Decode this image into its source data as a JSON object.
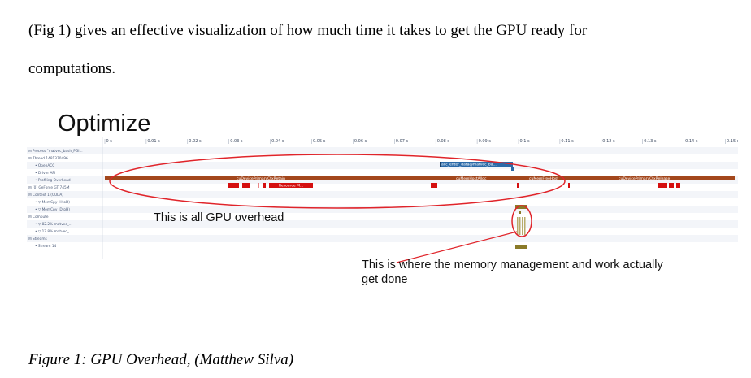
{
  "paragraph": {
    "line1": "(Fig 1) gives an effective visualization of how much time it takes to get the GPU ready for",
    "line2": "computations."
  },
  "figure": {
    "title": "Optimize",
    "time_ticks": [
      "0 s",
      "0.01 s",
      "0.02 s",
      "0.03 s",
      "0.04 s",
      "0.05 s",
      "0.06 s",
      "0.07 s",
      "0.08 s",
      "0.09 s",
      "0.1 s",
      "0.11 s",
      "0.12 s",
      "0.13 s",
      "0.14 s",
      "0.15 s"
    ],
    "rows": [
      "⊟ Process \"matvec_bash_PGI...",
      "⊟ Thread 1481370496",
      "• OpenACC",
      "• Driver API",
      "• Profiling Overhead",
      "⊟ [0] GeForce GT 745M",
      "⊟ Context 1 (CUDA)",
      "• ▽ MemCpy (HtoD)",
      "• ▽ MemCpy (DtoH)",
      "⊟ Compute",
      "• ▽ 82.2% matvec_...",
      "• ▽ 17.8% matvec_...",
      "⊟ Streams",
      "• Stream 14"
    ],
    "bar_labels": {
      "openacc": "acc_enter_data@matvec_ba...",
      "retain": "cuDevicePrimaryCtxRetain",
      "alloc": "cuMemHostAlloc",
      "free": "cuMemFreeHost",
      "release": "cuDevicePrimaryCtxRelease",
      "resource": "Resource M..."
    },
    "annotation_overhead": "This is all GPU overhead",
    "annotation_work": "This is where the memory management and work actually get done",
    "colors": {
      "driver_bar": "#a3471c",
      "openacc_bar": "#2b6aa8",
      "profiling_bar": "#d51010",
      "kernel_bar": "#8a7a28",
      "ellipse": "#e0242a"
    }
  },
  "caption": "Figure 1: GPU Overhead, (Matthew Silva)"
}
